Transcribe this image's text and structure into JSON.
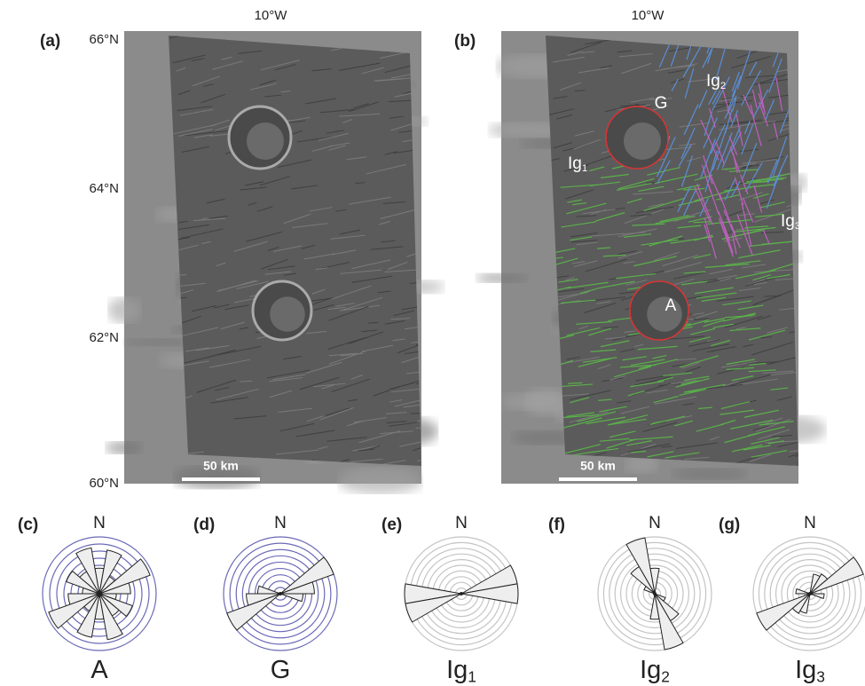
{
  "figure": {
    "maps": [
      {
        "panel": "(a)",
        "longitude": "10°W",
        "scale_bar": "50 km"
      },
      {
        "panel": "(b)",
        "longitude": "10°W",
        "scale_bar": "50 km",
        "labels": [
          {
            "main": "G",
            "sub": null
          },
          {
            "main": "Ig",
            "sub": "2"
          },
          {
            "main": "Ig",
            "sub": "1"
          },
          {
            "main": "Ig",
            "sub": "3"
          },
          {
            "main": "A",
            "sub": null
          }
        ]
      }
    ],
    "latitudes": [
      "66°N",
      "64°N",
      "62°N",
      "60°N"
    ],
    "roses": [
      {
        "panel": "(c)",
        "north": "N",
        "label": {
          "main": "A",
          "sub": null
        },
        "rings": 8,
        "ring_color": "#6a6ab8",
        "petals": [
          {
            "azimuth": 0,
            "length": 0.45
          },
          {
            "azimuth": 20,
            "length": 0.78
          },
          {
            "azimuth": 40,
            "length": 0.35
          },
          {
            "azimuth": 60,
            "length": 0.95
          },
          {
            "azimuth": 80,
            "length": 0.55
          },
          {
            "azimuth": 100,
            "length": 0.3
          },
          {
            "azimuth": 120,
            "length": 0.62
          },
          {
            "azimuth": 140,
            "length": 0.45
          },
          {
            "azimuth": 160,
            "length": 0.82
          }
        ]
      },
      {
        "panel": "(d)",
        "north": "N",
        "label": {
          "main": "G",
          "sub": null
        },
        "rings": 9,
        "ring_color": "#6a6ab8",
        "petals": [
          {
            "azimuth": 60,
            "length": 1.0
          },
          {
            "azimuth": 80,
            "length": 0.6
          },
          {
            "azimuth": 100,
            "length": 0.4
          }
        ]
      },
      {
        "panel": "(e)",
        "north": "N",
        "label": {
          "main": "Ig",
          "sub": "1"
        },
        "rings": 10,
        "ring_color": "#c4c4c4",
        "petals": [
          {
            "azimuth": 70,
            "length": 1.0
          },
          {
            "azimuth": 90,
            "length": 1.0
          }
        ]
      },
      {
        "panel": "(f)",
        "north": "N",
        "label": {
          "main": "Ig",
          "sub": "2"
        },
        "rings": 10,
        "ring_color": "#c4c4c4",
        "petals": [
          {
            "azimuth": 0,
            "length": 0.45
          },
          {
            "azimuth": 140,
            "length": 0.55
          },
          {
            "azimuth": 160,
            "length": 1.0
          },
          {
            "azimuth": 120,
            "length": 0.2
          }
        ]
      },
      {
        "panel": "(g)",
        "north": "N",
        "label": {
          "main": "Ig",
          "sub": "3"
        },
        "rings": 10,
        "ring_color": "#c4c4c4",
        "petals": [
          {
            "azimuth": 60,
            "length": 1.0
          },
          {
            "azimuth": 20,
            "length": 0.35
          },
          {
            "azimuth": 100,
            "length": 0.25
          },
          {
            "azimuth": 40,
            "length": 0.4
          }
        ]
      }
    ]
  }
}
